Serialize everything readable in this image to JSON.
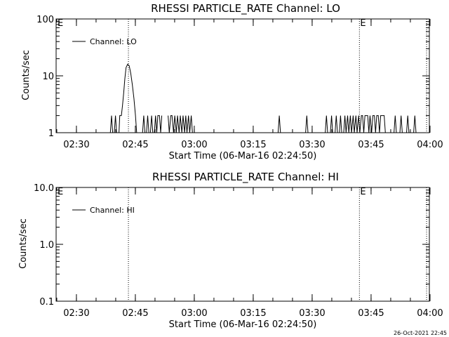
{
  "footer_timestamp": "26-Oct-2021 22:45",
  "chart_data": [
    {
      "type": "line",
      "title": "RHESSI PARTICLE_RATE Channel: LO",
      "xlabel": "Start Time (06-Mar-16 02:24:50)",
      "ylabel": "Counts/sec",
      "yscale": "log",
      "ylim": [
        1,
        100
      ],
      "yticks": [
        "1",
        "10",
        "100"
      ],
      "xlim_minutes": [
        0,
        95
      ],
      "xticks": [
        "02:30",
        "02:45",
        "03:00",
        "03:15",
        "03:30",
        "03:45",
        "04:00"
      ],
      "vlines_minutes": [
        18.4,
        77.2,
        94.3
      ],
      "markers": [
        {
          "label": "E",
          "position": "top-left"
        },
        {
          "label": "E",
          "position": "at-line-2"
        }
      ],
      "legend": {
        "label": "Channel: LO",
        "position": "top-left"
      },
      "series": [
        {
          "points": [
            [
              13.8,
              1
            ],
            [
              14.1,
              2
            ],
            [
              14.4,
              1
            ],
            [
              14.8,
              1
            ],
            [
              15.1,
              2
            ],
            [
              15.4,
              1
            ],
            [
              16.0,
              1
            ],
            [
              16.2,
              2
            ],
            [
              16.6,
              2
            ],
            [
              16.9,
              3
            ],
            [
              17.2,
              5
            ],
            [
              17.5,
              9
            ],
            [
              17.8,
              14
            ],
            [
              18.2,
              16
            ],
            [
              18.6,
              15
            ],
            [
              19.0,
              11
            ],
            [
              19.4,
              7
            ],
            [
              19.8,
              4
            ],
            [
              20.2,
              2
            ],
            [
              20.5,
              1
            ],
            [
              22.0,
              1
            ],
            [
              22.3,
              2
            ],
            [
              22.6,
              1
            ],
            [
              23.0,
              1
            ],
            [
              23.3,
              2
            ],
            [
              23.6,
              1
            ],
            [
              24.0,
              1
            ],
            [
              24.3,
              2
            ],
            [
              24.6,
              1
            ],
            [
              25.0,
              1
            ],
            [
              25.3,
              2
            ],
            [
              25.6,
              1
            ],
            [
              25.9,
              2
            ],
            [
              26.3,
              2
            ],
            [
              26.6,
              1
            ],
            [
              26.9,
              2
            ],
            [
              28.5,
              2
            ],
            [
              28.8,
              1
            ],
            [
              29.2,
              2
            ],
            [
              29.5,
              2
            ],
            [
              29.9,
              1
            ],
            [
              30.2,
              2
            ],
            [
              30.6,
              1
            ],
            [
              30.9,
              2
            ],
            [
              31.3,
              1
            ],
            [
              31.6,
              2
            ],
            [
              32.0,
              1
            ],
            [
              32.3,
              2
            ],
            [
              32.7,
              1
            ],
            [
              33.0,
              2
            ],
            [
              33.3,
              1
            ],
            [
              33.7,
              2
            ],
            [
              34.0,
              1
            ],
            [
              34.4,
              2
            ],
            [
              34.7,
              1
            ],
            [
              56.5,
              1
            ],
            [
              56.8,
              2
            ],
            [
              57.1,
              1
            ],
            [
              63.5,
              1
            ],
            [
              63.8,
              2
            ],
            [
              64.1,
              1
            ],
            [
              68.5,
              1
            ],
            [
              68.8,
              2
            ],
            [
              69.1,
              1
            ],
            [
              69.8,
              1
            ],
            [
              70.1,
              2
            ],
            [
              70.4,
              1
            ],
            [
              71.0,
              1
            ],
            [
              71.3,
              2
            ],
            [
              71.6,
              1
            ],
            [
              72.1,
              1
            ],
            [
              72.4,
              2
            ],
            [
              72.7,
              1
            ],
            [
              73.2,
              1
            ],
            [
              73.5,
              2
            ],
            [
              73.8,
              1
            ],
            [
              74.2,
              2
            ],
            [
              74.5,
              1
            ],
            [
              74.9,
              2
            ],
            [
              75.2,
              1
            ],
            [
              75.6,
              2
            ],
            [
              75.9,
              1
            ],
            [
              76.3,
              2
            ],
            [
              76.6,
              1
            ],
            [
              77.0,
              2
            ],
            [
              77.3,
              1
            ],
            [
              77.7,
              2
            ],
            [
              78.0,
              2
            ],
            [
              78.3,
              1
            ],
            [
              78.6,
              2
            ],
            [
              79.3,
              2
            ],
            [
              79.6,
              1
            ],
            [
              79.9,
              2
            ],
            [
              80.3,
              1
            ],
            [
              80.6,
              2
            ],
            [
              81.0,
              2
            ],
            [
              81.3,
              1
            ],
            [
              81.6,
              2
            ],
            [
              82.0,
              2
            ],
            [
              82.3,
              1
            ],
            [
              82.6,
              2
            ],
            [
              83.5,
              2
            ],
            [
              83.8,
              1
            ],
            [
              86.0,
              1
            ],
            [
              86.3,
              2
            ],
            [
              86.6,
              1
            ],
            [
              87.5,
              1
            ],
            [
              87.8,
              2
            ],
            [
              88.1,
              1
            ],
            [
              89.2,
              1
            ],
            [
              89.5,
              2
            ],
            [
              89.8,
              1
            ],
            [
              91.0,
              1
            ],
            [
              91.3,
              2
            ],
            [
              91.6,
              1
            ]
          ]
        }
      ]
    },
    {
      "type": "line",
      "title": "RHESSI PARTICLE_RATE Channel: HI",
      "xlabel": "Start Time (06-Mar-16 02:24:50)",
      "ylabel": "Counts/sec",
      "yscale": "log",
      "ylim": [
        0.1,
        10
      ],
      "yticks": [
        "0.1",
        "1.0",
        "10.0"
      ],
      "xlim_minutes": [
        0,
        95
      ],
      "xticks": [
        "02:30",
        "02:45",
        "03:00",
        "03:15",
        "03:30",
        "03:45",
        "04:00"
      ],
      "vlines_minutes": [
        18.4,
        77.2,
        94.3
      ],
      "markers": [
        {
          "label": "E",
          "position": "top-left"
        },
        {
          "label": "E",
          "position": "at-line-2"
        }
      ],
      "legend": {
        "label": "Channel: HI",
        "position": "top-left"
      },
      "series": [
        {
          "points": []
        }
      ]
    }
  ]
}
